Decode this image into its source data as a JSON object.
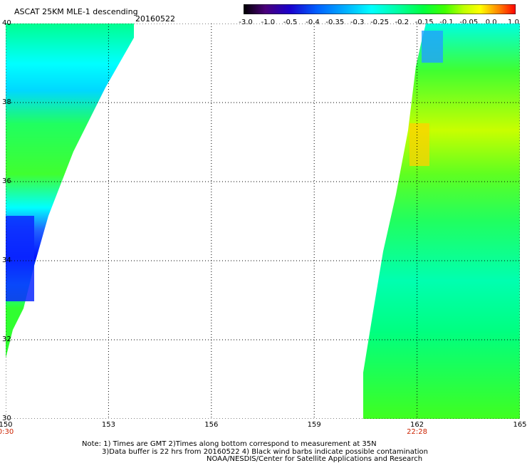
{
  "header": {
    "title": "ASCAT 25KM MLE-1 descending",
    "date": "20160522"
  },
  "colorbar": {
    "ticks": [
      "-3.0",
      "-1.0",
      "-0.5",
      "-0.4",
      "-0.35",
      "-0.3",
      "-0.25",
      "-0.2",
      "-0.15",
      "-0.1",
      "-0.05",
      "0.0",
      "1.0"
    ],
    "colors": [
      "#000000",
      "#4a007a",
      "#1a00cc",
      "#0060ff",
      "#00b4ff",
      "#00ffff",
      "#00ffa0",
      "#00ff40",
      "#40ff00",
      "#c0ff00",
      "#ffff00",
      "#ff8000",
      "#ff0000"
    ]
  },
  "axes": {
    "lon_labels": [
      "150",
      "153",
      "156",
      "159",
      "162",
      "165"
    ],
    "lat_labels": [
      "40",
      "38",
      "36",
      "34",
      "32",
      "30"
    ],
    "lon_range": [
      150,
      165
    ],
    "lat_range": [
      30,
      40
    ],
    "gridlines": "dotted"
  },
  "pass_times": [
    {
      "lon": 150,
      "label": "0:30"
    },
    {
      "lon": 162,
      "label": "22:28"
    }
  ],
  "swaths": [
    {
      "name": "west swath",
      "dominant_values": "-0.3 to -0.2",
      "low_patch": "-0.5 to -0.4 near 33-35N"
    },
    {
      "name": "east swath",
      "dominant_values": "-0.25 to -0.15",
      "high_patch": "-0.1 to -0.05 near 37-38N"
    }
  ],
  "notes": {
    "line1": "Note: 1) Times are GMT 2)Times along bottom correspond to measurement at 35N",
    "line2": "3)Data buffer is 22 hrs from 20160522 4) Black wind barbs indicate possible contamination",
    "line3": "NOAA/NESDIS/Center for Satellite Applications and Research"
  }
}
